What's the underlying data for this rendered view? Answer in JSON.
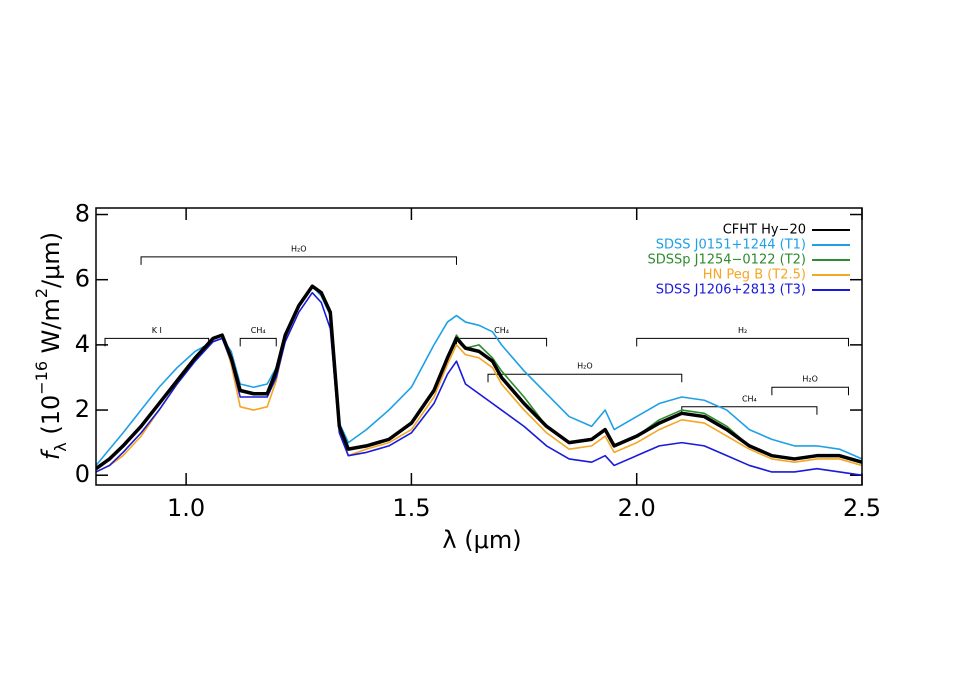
{
  "chart_data": {
    "type": "line",
    "x_label": "λ (μm)",
    "y_label": [
      "f",
      "λ",
      " (10",
      "−16",
      " W/m",
      "2",
      "/μm)"
    ],
    "x": [
      0.8,
      0.83,
      0.86,
      0.9,
      0.94,
      0.98,
      1.02,
      1.06,
      1.08,
      1.1,
      1.12,
      1.15,
      1.18,
      1.2,
      1.22,
      1.25,
      1.28,
      1.3,
      1.32,
      1.34,
      1.36,
      1.4,
      1.45,
      1.5,
      1.55,
      1.58,
      1.6,
      1.62,
      1.65,
      1.68,
      1.7,
      1.75,
      1.8,
      1.85,
      1.9,
      1.93,
      1.95,
      2.0,
      2.05,
      2.1,
      2.15,
      2.2,
      2.25,
      2.3,
      2.35,
      2.4,
      2.45,
      2.5
    ],
    "series": [
      {
        "name": "CFHT Hy−20",
        "color": "#000000",
        "values": [
          0.2,
          0.5,
          0.9,
          1.5,
          2.2,
          2.9,
          3.6,
          4.2,
          4.3,
          3.6,
          2.6,
          2.5,
          2.5,
          3.2,
          4.3,
          5.2,
          5.8,
          5.6,
          5.0,
          1.5,
          0.8,
          0.9,
          1.1,
          1.6,
          2.6,
          3.6,
          4.2,
          3.9,
          3.8,
          3.5,
          3.0,
          2.2,
          1.5,
          1.0,
          1.1,
          1.4,
          0.9,
          1.2,
          1.6,
          1.9,
          1.8,
          1.4,
          0.9,
          0.6,
          0.5,
          0.6,
          0.6,
          0.4
        ]
      },
      {
        "name": "SDSS J0151+1244 (T1)",
        "color": "#1ea0e6",
        "values": [
          0.3,
          0.8,
          1.3,
          2.0,
          2.7,
          3.3,
          3.8,
          4.1,
          4.2,
          3.8,
          2.8,
          2.7,
          2.8,
          3.3,
          4.3,
          5.2,
          5.8,
          5.5,
          4.9,
          1.6,
          1.0,
          1.4,
          2.0,
          2.7,
          4.0,
          4.7,
          4.9,
          4.7,
          4.6,
          4.4,
          4.0,
          3.2,
          2.5,
          1.8,
          1.5,
          2.0,
          1.4,
          1.8,
          2.2,
          2.4,
          2.3,
          2.0,
          1.4,
          1.1,
          0.9,
          0.9,
          0.8,
          0.5
        ]
      },
      {
        "name": "SDSSp J1254−0122 (T2)",
        "color": "#2e8b2e",
        "values": [
          0.2,
          0.5,
          0.9,
          1.5,
          2.2,
          2.9,
          3.6,
          4.2,
          4.3,
          3.6,
          2.6,
          2.5,
          2.5,
          3.2,
          4.3,
          5.2,
          5.8,
          5.6,
          5.0,
          1.5,
          0.8,
          0.9,
          1.1,
          1.6,
          2.6,
          3.6,
          4.3,
          3.9,
          4.0,
          3.6,
          3.2,
          2.4,
          1.5,
          1.0,
          1.1,
          1.4,
          0.9,
          1.2,
          1.7,
          2.0,
          1.9,
          1.5,
          0.9,
          0.6,
          0.5,
          0.6,
          0.6,
          0.4
        ]
      },
      {
        "name": "HN Peg B (T2.5)",
        "color": "#f5a623",
        "values": [
          0.1,
          0.3,
          0.6,
          1.2,
          2.0,
          2.8,
          3.6,
          4.2,
          4.3,
          3.4,
          2.1,
          2.0,
          2.1,
          2.9,
          4.2,
          5.2,
          5.8,
          5.6,
          5.0,
          1.4,
          0.6,
          0.8,
          1.0,
          1.4,
          2.4,
          3.4,
          4.0,
          3.7,
          3.6,
          3.3,
          2.8,
          2.0,
          1.3,
          0.8,
          0.9,
          1.2,
          0.7,
          1.0,
          1.4,
          1.7,
          1.6,
          1.2,
          0.8,
          0.5,
          0.4,
          0.5,
          0.5,
          0.3
        ]
      },
      {
        "name": "SDSS J1206+2813 (T3)",
        "color": "#1a1adb",
        "values": [
          0.1,
          0.3,
          0.7,
          1.3,
          2.0,
          2.8,
          3.5,
          4.1,
          4.2,
          3.5,
          2.4,
          2.4,
          2.4,
          3.0,
          4.1,
          5.0,
          5.6,
          5.3,
          4.5,
          1.3,
          0.6,
          0.7,
          0.9,
          1.3,
          2.2,
          3.1,
          3.5,
          2.8,
          2.5,
          2.2,
          2.0,
          1.5,
          0.9,
          0.5,
          0.4,
          0.6,
          0.3,
          0.6,
          0.9,
          1.0,
          0.9,
          0.6,
          0.3,
          0.1,
          0.1,
          0.2,
          0.1,
          0.0
        ]
      }
    ],
    "xlim": [
      0.8,
      2.5
    ],
    "ylim": [
      -0.3,
      8.2
    ],
    "xticks": [
      {
        "value": 1,
        "label": "1.0"
      },
      1.5,
      {
        "value": 2,
        "label": "2.0"
      },
      2.5
    ],
    "yticks": [
      0,
      2,
      4,
      6,
      8
    ],
    "legend": "top-right",
    "annotations": [
      {
        "label": "H₂O",
        "x": [
          0.9,
          1.6
        ],
        "y": 6.7
      },
      {
        "label": "K I",
        "x": [
          0.82,
          1.05
        ],
        "y": 4.2
      },
      {
        "label": "CH₄",
        "x": [
          1.12,
          1.2
        ],
        "y": 4.2
      },
      {
        "label": "CH₄",
        "x": [
          1.6,
          1.8
        ],
        "y": 4.2
      },
      {
        "label": "H₂",
        "x": [
          2.0,
          2.47
        ],
        "y": 4.2
      },
      {
        "label": "H₂O",
        "x": [
          1.67,
          2.1
        ],
        "y": 3.1
      },
      {
        "label": "H₂O",
        "x": [
          2.3,
          2.47
        ],
        "y": 2.7
      },
      {
        "label": "CH₄",
        "x": [
          2.1,
          2.4
        ],
        "y": 2.1
      }
    ]
  }
}
